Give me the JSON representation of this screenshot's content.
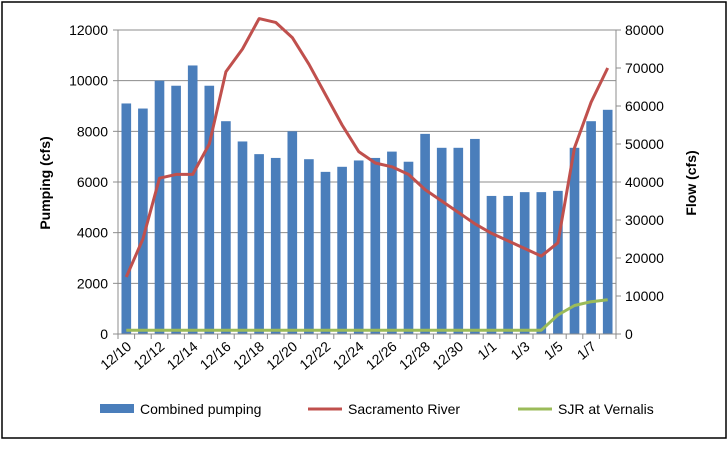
{
  "chart_data": {
    "type": "bar",
    "title": "",
    "xlabel": "",
    "ylabel": "Pumping (cfs)",
    "y2label": "Flow (cfs)",
    "ylim": [
      0,
      12000
    ],
    "y2lim": [
      0,
      80000
    ],
    "grid": true,
    "legend_position": "bottom",
    "x": [
      "12/10",
      "12/11",
      "12/12",
      "12/13",
      "12/14",
      "12/15",
      "12/16",
      "12/17",
      "12/18",
      "12/19",
      "12/20",
      "12/21",
      "12/22",
      "12/23",
      "12/24",
      "12/25",
      "12/26",
      "12/27",
      "12/28",
      "12/29",
      "12/30",
      "12/31",
      "1/1",
      "1/2",
      "1/3",
      "1/4",
      "1/5",
      "1/6",
      "1/7",
      "1/8"
    ],
    "xtick_labels": [
      "12/10",
      "12/12",
      "12/14",
      "12/16",
      "12/18",
      "12/20",
      "12/22",
      "12/24",
      "12/26",
      "12/28",
      "12/30",
      "1/1",
      "1/3",
      "1/5",
      "1/7"
    ],
    "yticks": [
      "0",
      "2000",
      "4000",
      "6000",
      "8000",
      "10000",
      "12000"
    ],
    "y2ticks": [
      "0",
      "10000",
      "20000",
      "30000",
      "40000",
      "50000",
      "60000",
      "70000",
      "80000"
    ],
    "series": [
      {
        "name": "Combined pumping",
        "type": "bar",
        "axis": "left",
        "color": "#4a7ebb",
        "values": [
          9100,
          8900,
          10000,
          9800,
          10600,
          9800,
          8400,
          7600,
          7100,
          6950,
          8000,
          6900,
          6400,
          6600,
          6850,
          6950,
          7200,
          6800,
          7900,
          7350,
          7350,
          7700,
          5450,
          5450,
          5600,
          5600,
          5650,
          7350,
          8400,
          8850
        ]
      },
      {
        "name": "Sacramento River",
        "type": "line",
        "axis": "right",
        "color": "#c0504d",
        "values": [
          15000,
          25000,
          41000,
          42000,
          42000,
          50000,
          69000,
          75000,
          83000,
          82000,
          78000,
          71000,
          63000,
          55000,
          48000,
          45000,
          44000,
          42000,
          38000,
          35000,
          32000,
          29000,
          26500,
          24500,
          22500,
          20500,
          24000,
          49000,
          61000,
          70000
        ]
      },
      {
        "name": "SJR at Vernalis",
        "type": "line",
        "axis": "right",
        "color": "#9bbb59",
        "values": [
          1000,
          1000,
          1000,
          1000,
          1000,
          1000,
          1000,
          1000,
          1000,
          1000,
          1000,
          1000,
          1000,
          1000,
          1000,
          1000,
          1000,
          1000,
          1000,
          1000,
          1000,
          1000,
          1000,
          1000,
          1000,
          1000,
          5000,
          7500,
          8500,
          9000
        ]
      }
    ]
  },
  "legend": {
    "items": [
      {
        "label": "Combined pumping",
        "kind": "bar",
        "color": "#4a7ebb"
      },
      {
        "label": "Sacramento River",
        "kind": "line",
        "color": "#c0504d"
      },
      {
        "label": "SJR at Vernalis",
        "kind": "line",
        "color": "#9bbb59"
      }
    ]
  }
}
